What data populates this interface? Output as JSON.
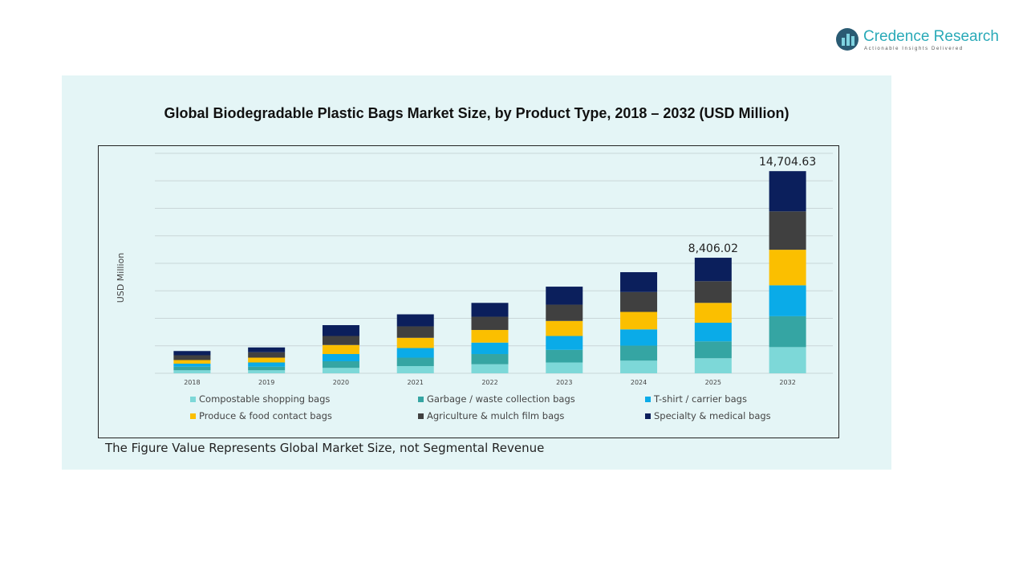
{
  "brand": {
    "name": "Credence Research",
    "tagline": "Actionable Insights Delivered"
  },
  "footnote": "The Figure Value Represents Global Market Size, not Segmental Revenue",
  "chart_data": {
    "type": "bar",
    "stacked": true,
    "title": "Global Biodegradable  Plastic Bags Market Size, by Product Type, 2018 – 2032 (USD Million)",
    "ylabel": "USD Million",
    "xlabel": "",
    "ylim": [
      0,
      16000
    ],
    "grid": true,
    "legend": "bottom",
    "categories": [
      "2018",
      "2019",
      "2020",
      "2021",
      "2022",
      "2023",
      "2024",
      "2025",
      "2032"
    ],
    "series": [
      {
        "name": "Compostable shopping bags",
        "color": "#7dd8d8",
        "values": [
          219,
          219,
          394,
          525,
          657,
          788,
          919,
          1095,
          1906
        ]
      },
      {
        "name": "Garbage / waste collection bags",
        "color": "#35a5a3",
        "values": [
          263,
          263,
          482,
          613,
          744,
          919,
          1094,
          1226,
          2247
        ]
      },
      {
        "name": "T-shirt / carrier bags",
        "color": "#0aabe8",
        "values": [
          219,
          306,
          525,
          700,
          832,
          1007,
          1182,
          1357,
          2247
        ]
      },
      {
        "name": "Produce & food contact bags",
        "color": "#fbbf00",
        "values": [
          263,
          350,
          657,
          744,
          919,
          1094,
          1270,
          1445,
          2587
        ]
      },
      {
        "name": "Agriculture & mulch film bags",
        "color": "#404040",
        "values": [
          350,
          394,
          657,
          832,
          963,
          1182,
          1445,
          1576,
          2791
        ]
      },
      {
        "name": "Specialty & medical bags",
        "color": "#0b1f5c",
        "values": [
          306,
          350,
          788,
          876,
          1007,
          1313,
          1445,
          1707.02,
          2926.63
        ]
      }
    ],
    "data_labels": [
      {
        "category": "2025",
        "text": "8,406.02"
      },
      {
        "category": "2032",
        "text": "14,704.63"
      }
    ]
  }
}
